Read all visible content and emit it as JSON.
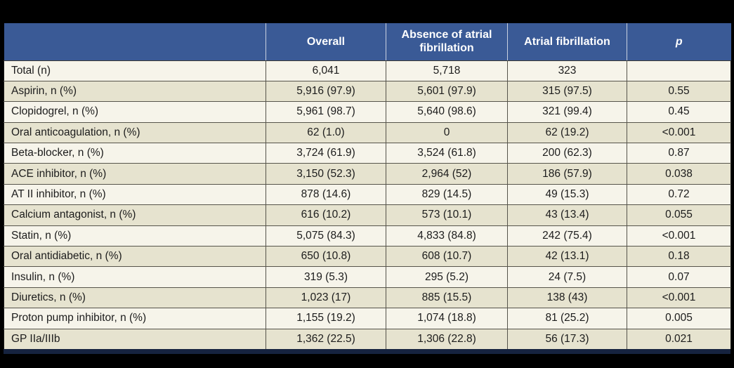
{
  "table": {
    "columns": [
      {
        "label": ""
      },
      {
        "label": "Overall"
      },
      {
        "label": "Absence of atrial fibrillation"
      },
      {
        "label": "Atrial fibrillation"
      },
      {
        "label": "p"
      }
    ],
    "rows": [
      {
        "label": "Total (n)",
        "overall": "6,041",
        "absence": "5,718",
        "af": "323",
        "p": ""
      },
      {
        "label": "Aspirin, n (%)",
        "overall": "5,916 (97.9)",
        "absence": "5,601 (97.9)",
        "af": "315 (97.5)",
        "p": "0.55"
      },
      {
        "label": "Clopidogrel, n (%)",
        "overall": "5,961 (98.7)",
        "absence": "5,640 (98.6)",
        "af": "321 (99.4)",
        "p": "0.45"
      },
      {
        "label": "Oral anticoagulation, n (%)",
        "overall": "62 (1.0)",
        "absence": "0",
        "af": "62 (19.2)",
        "p": "<0.001"
      },
      {
        "label": "Beta-blocker, n (%)",
        "overall": "3,724 (61.9)",
        "absence": "3,524 (61.8)",
        "af": "200 (62.3)",
        "p": "0.87"
      },
      {
        "label": "ACE inhibitor, n (%)",
        "overall": "3,150 (52.3)",
        "absence": "2,964 (52)",
        "af": "186 (57.9)",
        "p": "0.038"
      },
      {
        "label": "AT II inhibitor, n (%)",
        "overall": "878 (14.6)",
        "absence": "829 (14.5)",
        "af": "49 (15.3)",
        "p": "0.72"
      },
      {
        "label": "Calcium antagonist, n (%)",
        "overall": "616 (10.2)",
        "absence": "573 (10.1)",
        "af": "43 (13.4)",
        "p": "0.055"
      },
      {
        "label": "Statin, n (%)",
        "overall": "5,075 (84.3)",
        "absence": "4,833 (84.8)",
        "af": "242 (75.4)",
        "p": "<0.001"
      },
      {
        "label": "Oral antidiabetic, n (%)",
        "overall": "650 (10.8)",
        "absence": "608 (10.7)",
        "af": "42 (13.1)",
        "p": "0.18"
      },
      {
        "label": "Insulin, n (%)",
        "overall": "319 (5.3)",
        "absence": "295 (5.2)",
        "af": "24 (7.5)",
        "p": "0.07"
      },
      {
        "label": "Diuretics, n (%)",
        "overall": "1,023 (17)",
        "absence": "885 (15.5)",
        "af": "138 (43)",
        "p": "<0.001"
      },
      {
        "label": "Proton pump inhibitor, n (%)",
        "overall": "1,155 (19.2)",
        "absence": "1,074 (18.8)",
        "af": "81 (25.2)",
        "p": "0.005"
      },
      {
        "label": "GP IIa/IIIb",
        "overall": "1,362 (22.5)",
        "absence": "1,306 (22.8)",
        "af": "56 (17.3)",
        "p": "0.021"
      }
    ]
  },
  "colors": {
    "header_background": "#3a5a96",
    "header_text": "#ffffff",
    "row_light": "#f6f4ea",
    "row_beige": "#e6e3cf",
    "cell_border": "#56544b",
    "header_divider": "#c9d1e0",
    "bottom_bar": "#16233f",
    "page_background": "#000000",
    "body_text": "#1c1c1c"
  }
}
